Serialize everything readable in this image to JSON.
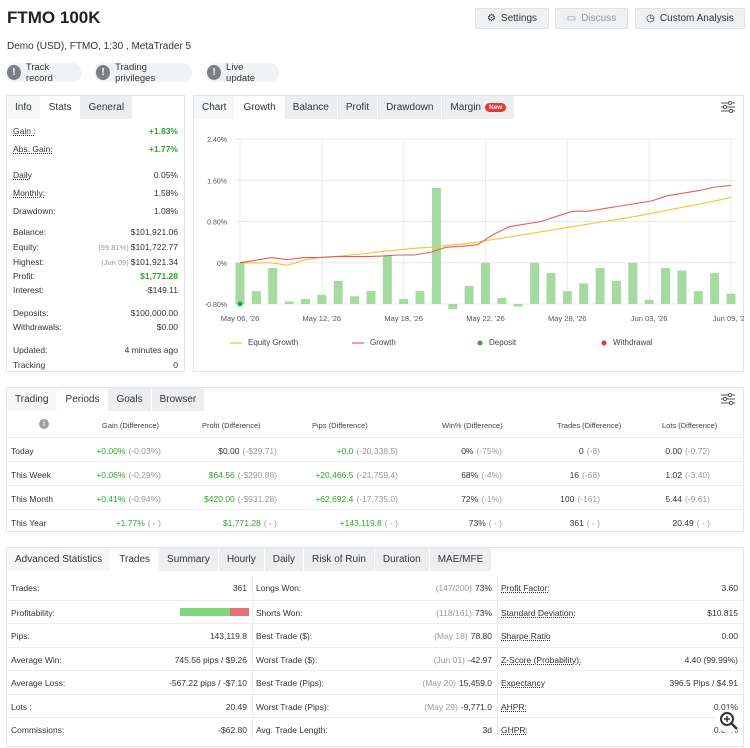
{
  "header": {
    "title": "FTMO 100K",
    "subtitle": "Demo (USD), FTMO, 1:30 , MetaTrader 5",
    "settings": "Settings",
    "discuss": "Discuss",
    "custom_analysis": "Custom Analysis"
  },
  "pills": [
    "Track record",
    "Trading privileges",
    "Live update"
  ],
  "left_tabs": [
    "Info",
    "Stats",
    "General"
  ],
  "left_stats": [
    {
      "k": "Gain :",
      "v": "+1.83%",
      "green": true,
      "u": true
    },
    {
      "k": "Abs. Gain:",
      "v": "+1.77%",
      "green": true,
      "u": true
    },
    {
      "k": "Daily",
      "v": "0.05%",
      "u": true
    },
    {
      "k": "Monthly:",
      "v": "1.58%",
      "u": true
    },
    {
      "k": "Drawdown:",
      "v": "1.08%"
    },
    {
      "k": "Balance:",
      "v": "$101,921.06"
    },
    {
      "k": "Equity:",
      "pre": "(99.81%)",
      "v": "$101,722.77"
    },
    {
      "k": "Highest:",
      "pre": "(Jun 09)",
      "v": "$101,921.34"
    },
    {
      "k": "Profit:",
      "v": "$1,771.28",
      "green": true
    },
    {
      "k": "Interest:",
      "v": "-$149.11"
    },
    {
      "k": "Deposits:",
      "v": "$100,000.00"
    },
    {
      "k": "Withdrawals:",
      "v": "$0.00"
    },
    {
      "k": "Updated:",
      "v": "4 minutes ago"
    },
    {
      "k": "Tracking",
      "v": "0"
    }
  ],
  "chart_tabs": [
    "Chart",
    "Growth",
    "Balance",
    "Profit",
    "Drawdown",
    "Margin"
  ],
  "chart_new_badge": "New",
  "chart_legend": [
    "Equity Growth",
    "Growth",
    "Deposit",
    "Withdrawal"
  ],
  "chart_data": {
    "type": "bar",
    "y_ticks": [
      "2.40%",
      "1.60%",
      "0.80%",
      "0%",
      "-0.80%"
    ],
    "ylim": [
      -0.8,
      2.4
    ],
    "x_ticks": [
      "May 06, '26",
      "May 12, '26",
      "May 18, '26",
      "May 22, '26",
      "May 28, '26",
      "Jun 03, '26",
      "Jun 09, '26"
    ],
    "bars": [
      0.0,
      -0.55,
      -0.1,
      -0.75,
      -0.7,
      -0.62,
      -0.35,
      -0.65,
      -0.55,
      0.15,
      -0.7,
      -0.55,
      1.45,
      -0.9,
      -0.45,
      0.0,
      -0.68,
      -0.85,
      0.0,
      -0.2,
      -0.55,
      -0.4,
      -0.1,
      -0.35,
      0.0,
      -0.72,
      -0.1,
      -0.15,
      -0.55,
      -0.2,
      -0.6
    ],
    "growth": [
      0.0,
      0.05,
      0.1,
      0.06,
      0.1,
      0.1,
      0.12,
      0.12,
      0.12,
      0.13,
      0.15,
      0.15,
      0.2,
      0.3,
      0.32,
      0.35,
      0.55,
      0.7,
      0.75,
      0.8,
      0.9,
      1.0,
      1.0,
      1.05,
      1.1,
      1.15,
      1.2,
      1.3,
      1.35,
      1.4,
      1.47,
      1.5
    ],
    "equity": [
      0.0,
      0.0,
      0.0,
      -0.05,
      0.05,
      0.1,
      0.12,
      0.15,
      0.18,
      0.22,
      0.25,
      0.28,
      0.3,
      0.33,
      0.36,
      0.4,
      0.45,
      0.5,
      0.55,
      0.6,
      0.65,
      0.7,
      0.75,
      0.8,
      0.85,
      0.9,
      0.96,
      1.02,
      1.08,
      1.14,
      1.2,
      1.27
    ]
  },
  "periods": {
    "tabs": [
      "Trading",
      "Periods",
      "Goals",
      "Browser"
    ],
    "headers": [
      "Gain (Difference)",
      "Profit (Difference)",
      "Pips (Difference)",
      "Win% (Difference)",
      "Trades (Difference)",
      "Lots (Difference)"
    ],
    "rows": [
      {
        "name": "Today",
        "gain": "+0.00%",
        "gain_d": "(-0.03%)",
        "profit": "$0.00",
        "profit_d": "(-$29.71)",
        "pips": "+0.0",
        "pips_d": "(-20,338.5)",
        "win": "0%",
        "win_d": "(-75%)",
        "trades": "0",
        "trades_d": "(-8)",
        "lots": "0.00",
        "lots_d": "(-0.72)"
      },
      {
        "name": "This Week",
        "gain": "+0.06%",
        "gain_d": "(-0.29%)",
        "profit": "$64.56",
        "profit_d": "(-$290.88)",
        "pips": "+20,466.5",
        "pips_d": "(-21,759.4)",
        "win": "68%",
        "win_d": "(-4%)",
        "trades": "16",
        "trades_d": "(-68)",
        "lots": "1.02",
        "lots_d": "(-3.40)"
      },
      {
        "name": "This Month",
        "gain": "+0.41%",
        "gain_d": "(-0.94%)",
        "profit": "$420.00",
        "profit_d": "(-$931.28)",
        "pips": "+62,692.4",
        "pips_d": "(-17,735.0)",
        "win": "72%",
        "win_d": "(-1%)",
        "trades": "100",
        "trades_d": "(-161)",
        "lots": "5.44",
        "lots_d": "(-9.61)"
      },
      {
        "name": "This Year",
        "gain": "+1.77%",
        "gain_d": "( - )",
        "profit": "$1,771.28",
        "profit_d": "( - )",
        "pips": "+143,119.8",
        "pips_d": "( - )",
        "win": "73%",
        "win_d": "( - )",
        "trades": "361",
        "trades_d": "( - )",
        "lots": "20.49",
        "lots_d": "( - )"
      }
    ]
  },
  "advanced": {
    "tabs": [
      "Advanced Statistics",
      "Trades",
      "Summary",
      "Hourly",
      "Daily",
      "Risk of Ruin",
      "Duration",
      "MAE/MFE"
    ],
    "col1": [
      {
        "k": "Trades:",
        "v": "361"
      },
      {
        "k": "Profitability:",
        "v": ""
      },
      {
        "k": "Pips:",
        "v": "143,119.8"
      },
      {
        "k": "Average Win:",
        "v": "745.56 pips / $9.26"
      },
      {
        "k": "Average Loss:",
        "v": "-567.22 pips / -$7.10"
      },
      {
        "k": "Lots :",
        "v": "20.49"
      },
      {
        "k": "Commissions:",
        "v": "-$62.80"
      }
    ],
    "profitability_win": 0.73,
    "col2": [
      {
        "k": "Longs Won:",
        "pre": "(147/200)",
        "v": "73%"
      },
      {
        "k": "Shorts Won:",
        "pre": "(118/161)",
        "v": "73%"
      },
      {
        "k": "Best Trade ($):",
        "pre": "(May 18)",
        "v": "78.80"
      },
      {
        "k": "Worst Trade ($):",
        "pre": "(Jun 01)",
        "v": "-42.97"
      },
      {
        "k": "Best Trade (Pips):",
        "pre": "(May 20)",
        "v": "15,459.0"
      },
      {
        "k": "Worst Trade (Pips):",
        "pre": "(May 29)",
        "v": "-9,771.0"
      },
      {
        "k": "Avg. Trade Length:",
        "pre": "",
        "v": "3d"
      }
    ],
    "col3": [
      {
        "k": "Profit Factor:",
        "v": "3.60"
      },
      {
        "k": "Standard Deviation:",
        "v": "$10.815"
      },
      {
        "k": "Sharpe Ratio",
        "v": "0.00"
      },
      {
        "k": "Z-Score (Probability):",
        "v": "4.40 (99.99%)"
      },
      {
        "k": "Expectancy",
        "v": "396.5 Pips / $4.91"
      },
      {
        "k": "AHPR:",
        "v": "0.01%"
      },
      {
        "k": "GHPR:",
        "v": "0.01%"
      }
    ]
  }
}
